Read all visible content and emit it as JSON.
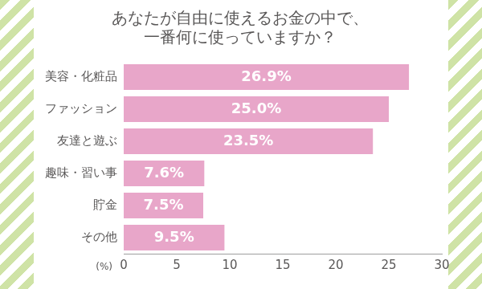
{
  "chart_data": {
    "type": "bar",
    "orientation": "horizontal",
    "title": [
      "あなたが自由に使えるお金の中で、",
      "一番何に使っていますか？"
    ],
    "categories": [
      "美容・化粧品",
      "ファッション",
      "友達と遊ぶ",
      "趣味・習い事",
      "貯金",
      "その他"
    ],
    "values": [
      26.9,
      25.0,
      23.5,
      7.6,
      7.5,
      9.5
    ],
    "value_labels": [
      "26.9%",
      "25.0%",
      "23.5%",
      "7.6%",
      "7.5%",
      "9.5%"
    ],
    "data_labels": true,
    "color": "#e8a6c9",
    "x_label": "(%)",
    "xlim": [
      0,
      30
    ],
    "xticks": [
      0,
      5,
      10,
      15,
      20,
      25,
      30
    ],
    "grid": false
  }
}
